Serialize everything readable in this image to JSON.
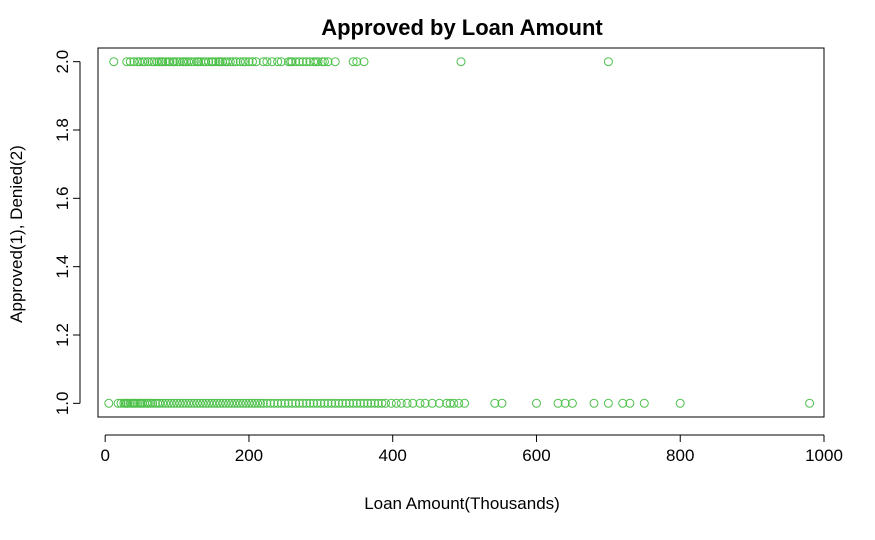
{
  "chart_data": {
    "type": "scatter",
    "title": "Approved by Loan Amount",
    "xlabel": "Loan Amount(Thousands)",
    "ylabel": "Approved(1), Denied(2)",
    "xlim": [
      -10,
      1000
    ],
    "ylim": [
      0.96,
      2.04
    ],
    "x_ticks": [
      0,
      200,
      400,
      600,
      800,
      1000
    ],
    "x_tick_labels": [
      "0",
      "200",
      "400",
      "600",
      "800",
      "1000"
    ],
    "y_ticks": [
      1.0,
      1.2,
      1.4,
      1.6,
      1.8,
      2.0
    ],
    "y_tick_labels": [
      "1.0",
      "1.2",
      "1.4",
      "1.6",
      "1.8",
      "2.0"
    ],
    "grid": false,
    "legend": "none",
    "point_color": "#4ec14b",
    "series": [
      {
        "values_y": 2,
        "x": [
          12,
          30,
          35,
          40,
          45,
          48,
          52,
          55,
          60,
          65,
          68,
          72,
          75,
          78,
          80,
          84,
          88,
          90,
          94,
          96,
          100,
          104,
          108,
          110,
          113,
          116,
          120,
          124,
          128,
          130,
          133,
          137,
          140,
          144,
          148,
          150,
          154,
          158,
          160,
          163,
          167,
          170,
          174,
          178,
          182,
          188,
          192,
          195,
          200,
          205,
          210,
          220,
          225,
          232,
          240,
          245,
          255,
          258,
          260,
          265,
          270,
          275,
          280,
          285,
          290,
          293,
          296,
          302,
          305,
          310,
          320,
          345,
          350,
          360,
          495,
          700
        ]
      },
      {
        "values_y": 1,
        "x": [
          5,
          18,
          22,
          26,
          28,
          30,
          32,
          35,
          38,
          40,
          42,
          45,
          48,
          50,
          52,
          55,
          58,
          60,
          63,
          66,
          70,
          73,
          76,
          80,
          84,
          88,
          92,
          96,
          100,
          104,
          108,
          112,
          116,
          120,
          124,
          128,
          132,
          136,
          140,
          144,
          148,
          152,
          156,
          160,
          164,
          168,
          172,
          176,
          180,
          184,
          188,
          192,
          196,
          200,
          204,
          208,
          212,
          216,
          220,
          225,
          230,
          235,
          240,
          245,
          250,
          255,
          260,
          265,
          270,
          275,
          280,
          285,
          290,
          295,
          300,
          305,
          310,
          315,
          320,
          325,
          330,
          335,
          340,
          345,
          350,
          355,
          360,
          365,
          370,
          375,
          380,
          385,
          390,
          398,
          405,
          412,
          420,
          428,
          438,
          445,
          455,
          465,
          475,
          480,
          485,
          492,
          500,
          542,
          552,
          600,
          630,
          640,
          650,
          680,
          700,
          720,
          730,
          750,
          800,
          980
        ]
      }
    ]
  }
}
